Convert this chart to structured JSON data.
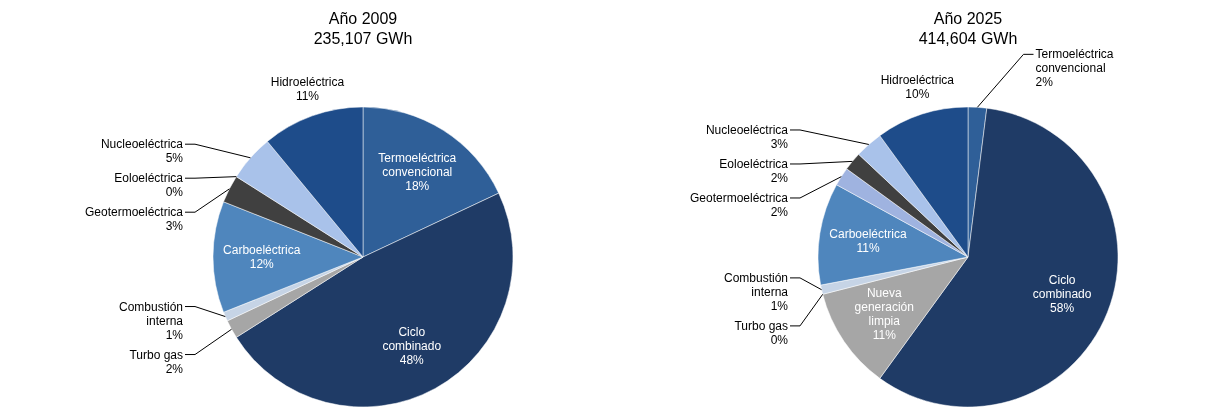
{
  "chart_data": [
    {
      "type": "pie",
      "title": "Año 2009",
      "subtitle": "235,107 GWh",
      "categories": [
        "Termoeléctrica convencional",
        "Ciclo combinado",
        "Turbo gas",
        "Combustión interna",
        "Carboeléctrica",
        "Geotermoeléctrica",
        "Eoloeléctrica",
        "Nucleoeléctrica",
        "Hidroeléctrica"
      ],
      "values": [
        18,
        48,
        2,
        1,
        12,
        3,
        0,
        5,
        11
      ],
      "colors": [
        "#2f5f98",
        "#1f3b66",
        "#a6a6a6",
        "#c6d4e6",
        "#4f86bd",
        "#404040",
        null,
        "#a9c2ea",
        "#1e4c8a"
      ],
      "value_labels": [
        "18%",
        "48%",
        "2%",
        "1%",
        "12%",
        "3%",
        "0%",
        "5%",
        "11%"
      ]
    },
    {
      "type": "pie",
      "title": "Año 2025",
      "subtitle": "414,604 GWh",
      "categories": [
        "Termoeléctrica convencional",
        "Ciclo combinado",
        "Nueva generación limpia",
        "Turbo gas",
        "Combustión interna",
        "Carboeléctrica",
        "Geotermoeléctrica",
        "Eoloeléctrica",
        "Nucleoeléctrica",
        "Hidroeléctrica"
      ],
      "values": [
        2,
        58,
        11,
        0,
        1,
        11,
        2,
        2,
        3,
        10
      ],
      "colors": [
        "#2f5f98",
        "#1f3b66",
        "#a6a6a6",
        null,
        "#c6d4e6",
        "#4f86bd",
        "#9fb3e0",
        "#404040",
        "#a9c2ea",
        "#1e4c8a"
      ],
      "value_labels": [
        "2%",
        "58%",
        "11%",
        "0%",
        "1%",
        "11%",
        "2%",
        "2%",
        "3%",
        "10%"
      ]
    }
  ]
}
